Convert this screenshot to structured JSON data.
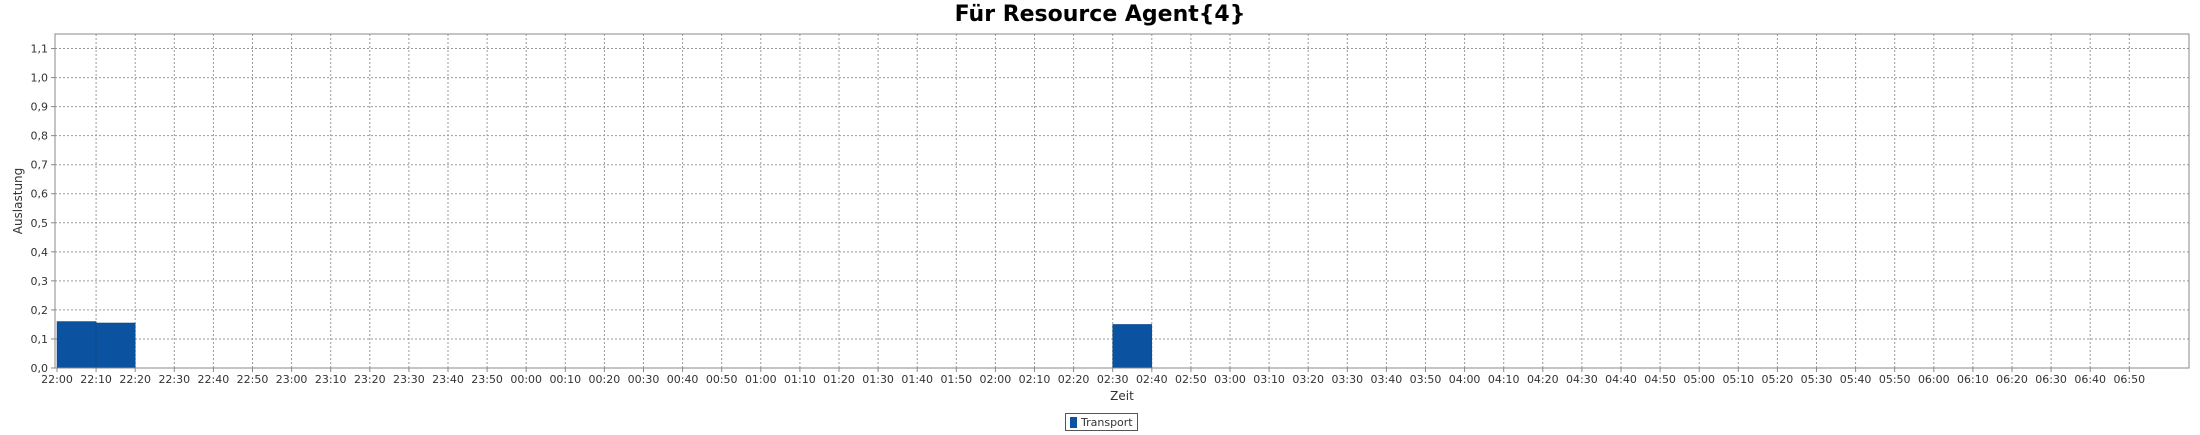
{
  "chart_data": {
    "type": "bar",
    "title": "Für Resource Agent{4}",
    "xlabel": "Zeit",
    "ylabel": "Auslastung",
    "ylim": [
      0,
      1.15
    ],
    "yticks": [
      "0,0",
      "0,1",
      "0,2",
      "0,3",
      "0,4",
      "0,5",
      "0,6",
      "0,7",
      "0,8",
      "0,9",
      "1,0",
      "1,1"
    ],
    "categories": [
      "22:00",
      "22:10",
      "22:20",
      "22:30",
      "22:40",
      "22:50",
      "23:00",
      "23:10",
      "23:20",
      "23:30",
      "23:40",
      "23:50",
      "00:00",
      "00:10",
      "00:20",
      "00:30",
      "00:40",
      "00:50",
      "01:00",
      "01:10",
      "01:20",
      "01:30",
      "01:40",
      "01:50",
      "02:00",
      "02:10",
      "02:20",
      "02:30",
      "02:40",
      "02:50",
      "03:00",
      "03:10",
      "03:20",
      "03:30",
      "03:40",
      "03:50",
      "04:00",
      "04:10",
      "04:20",
      "04:30",
      "04:40",
      "04:50",
      "05:00",
      "05:10",
      "05:20",
      "05:30",
      "05:40",
      "05:50",
      "06:00",
      "06:10",
      "06:20",
      "06:30",
      "06:40",
      "06:50"
    ],
    "series": [
      {
        "name": "Transport",
        "color": "#0b52a0",
        "values": [
          0.16,
          0.155,
          0,
          0,
          0,
          0,
          0,
          0,
          0,
          0,
          0,
          0,
          0,
          0,
          0,
          0,
          0,
          0,
          0,
          0,
          0,
          0,
          0,
          0,
          0,
          0,
          0,
          0.15,
          0,
          0,
          0,
          0,
          0,
          0,
          0,
          0,
          0,
          0,
          0,
          0,
          0,
          0,
          0,
          0,
          0,
          0,
          0,
          0,
          0,
          0,
          0,
          0,
          0,
          0
        ]
      }
    ],
    "grid": true,
    "legend_position": "bottom-center"
  }
}
